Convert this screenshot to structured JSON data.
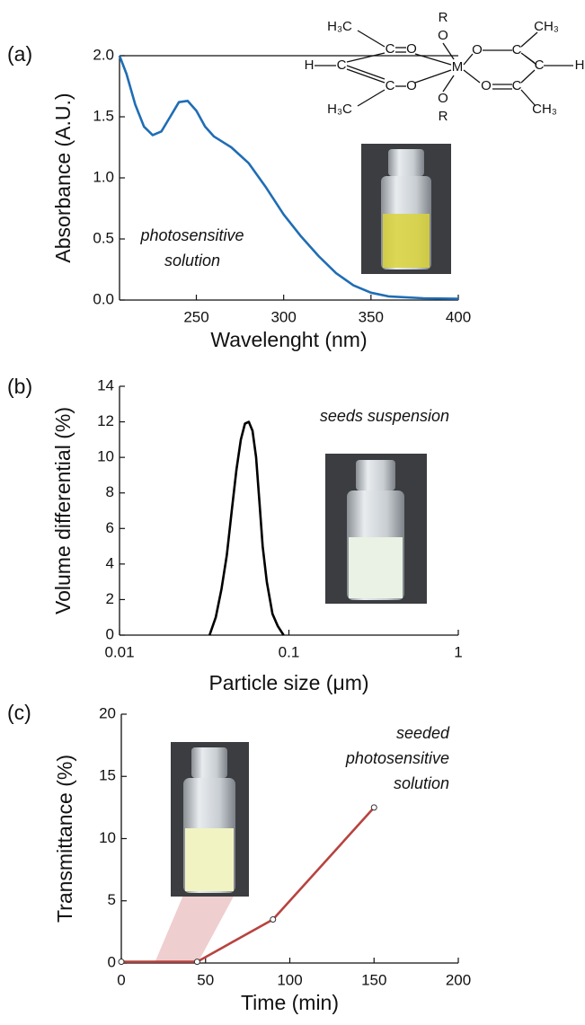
{
  "chart_data": [
    {
      "type": "line",
      "panel_label": "(a)",
      "x_label": "Wavelenght (nm)",
      "y_label": "Absorbance (A.U.)",
      "xlim": [
        206,
        400
      ],
      "ylim": [
        0,
        2
      ],
      "xticks": [
        250,
        300,
        350,
        400
      ],
      "yticks": [
        {
          "value": 0,
          "label": "0.0"
        },
        {
          "value": 0.5,
          "label": "0.5"
        },
        {
          "value": 1,
          "label": "1.0"
        },
        {
          "value": 1.5,
          "label": "1.5"
        },
        {
          "value": 2,
          "label": "2.0"
        }
      ],
      "top_border": true,
      "x": [
        206,
        210,
        215,
        220,
        225,
        230,
        235,
        240,
        245,
        250,
        255,
        260,
        270,
        280,
        290,
        300,
        310,
        320,
        330,
        340,
        350,
        360,
        380,
        400
      ],
      "series": [
        {
          "color": "#1f6db5",
          "values": [
            2.0,
            1.85,
            1.6,
            1.42,
            1.35,
            1.38,
            1.5,
            1.62,
            1.63,
            1.55,
            1.42,
            1.34,
            1.25,
            1.12,
            0.92,
            0.7,
            0.52,
            0.36,
            0.22,
            0.12,
            0.06,
            0.03,
            0.015,
            0.01
          ]
        }
      ],
      "annotation": [
        "photosensitive",
        "solution"
      ],
      "structure": [
        "H₃C",
        "C",
        "O",
        "H",
        "C",
        "H₃C",
        "C",
        "O",
        "R",
        "O",
        "M",
        "O",
        "R",
        "O",
        "C",
        "CH₃",
        "C",
        "H",
        "O",
        "C",
        "CH₃"
      ]
    },
    {
      "type": "line",
      "panel_label": "(b)",
      "x_label": "Particle size (μm)",
      "y_label": "Volume differential (%)",
      "log_x": true,
      "xlim": [
        0.01,
        1
      ],
      "ylim": [
        0,
        14
      ],
      "xticks": [
        0.01,
        0.1,
        1
      ],
      "yticks": [
        0,
        2,
        4,
        6,
        8,
        10,
        12,
        14
      ],
      "x": [
        0.034,
        0.037,
        0.04,
        0.043,
        0.046,
        0.049,
        0.052,
        0.055,
        0.058,
        0.061,
        0.064,
        0.067,
        0.07,
        0.074,
        0.08,
        0.086,
        0.093
      ],
      "series": [
        {
          "color": "#000000",
          "values": [
            0,
            1,
            2.6,
            4.5,
            7,
            9.3,
            11,
            11.9,
            12,
            11.5,
            10,
            7.5,
            5,
            3,
            1.2,
            0.5,
            0
          ]
        }
      ],
      "annotation": [
        "seeds suspension"
      ]
    },
    {
      "type": "line",
      "panel_label": "(c)",
      "x_label": "Time (min)",
      "y_label": "Transmittance (%)",
      "xlim": [
        0,
        200
      ],
      "ylim": [
        0,
        20
      ],
      "xticks": [
        0,
        50,
        100,
        150,
        200
      ],
      "yticks": [
        0,
        5,
        10,
        15,
        20
      ],
      "x": [
        0,
        45,
        90,
        150
      ],
      "series": [
        {
          "color": "#b8433f",
          "values": [
            0.1,
            0.1,
            3.5,
            12.5
          ],
          "markers": true
        }
      ],
      "annotation": [
        "seeded",
        "photosensitive",
        "solution"
      ]
    }
  ]
}
